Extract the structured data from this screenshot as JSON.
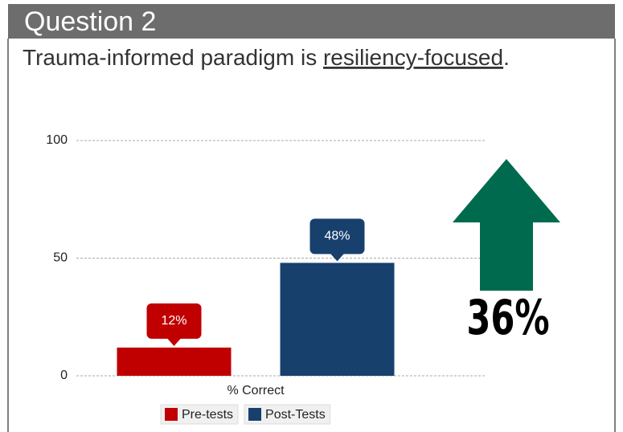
{
  "header": {
    "title": "Question 2",
    "subtitle": [
      "Trauma-informed paradigm is ",
      "resiliency-focused",
      "."
    ]
  },
  "chart_data": {
    "type": "bar",
    "categories": [
      "% Correct"
    ],
    "series": [
      {
        "name": "Pre-tests",
        "color": "#c00000",
        "values": [
          12
        ],
        "value_labels": [
          "12%"
        ]
      },
      {
        "name": "Post-Tests",
        "color": "#17406d",
        "values": [
          48
        ],
        "value_labels": [
          "48%"
        ]
      }
    ],
    "ylim": [
      0,
      100
    ],
    "yticks": [
      0,
      50,
      100
    ],
    "grid": true,
    "legend": "bottom",
    "annotation": {
      "text": "36%",
      "color": "#006a4e"
    }
  }
}
